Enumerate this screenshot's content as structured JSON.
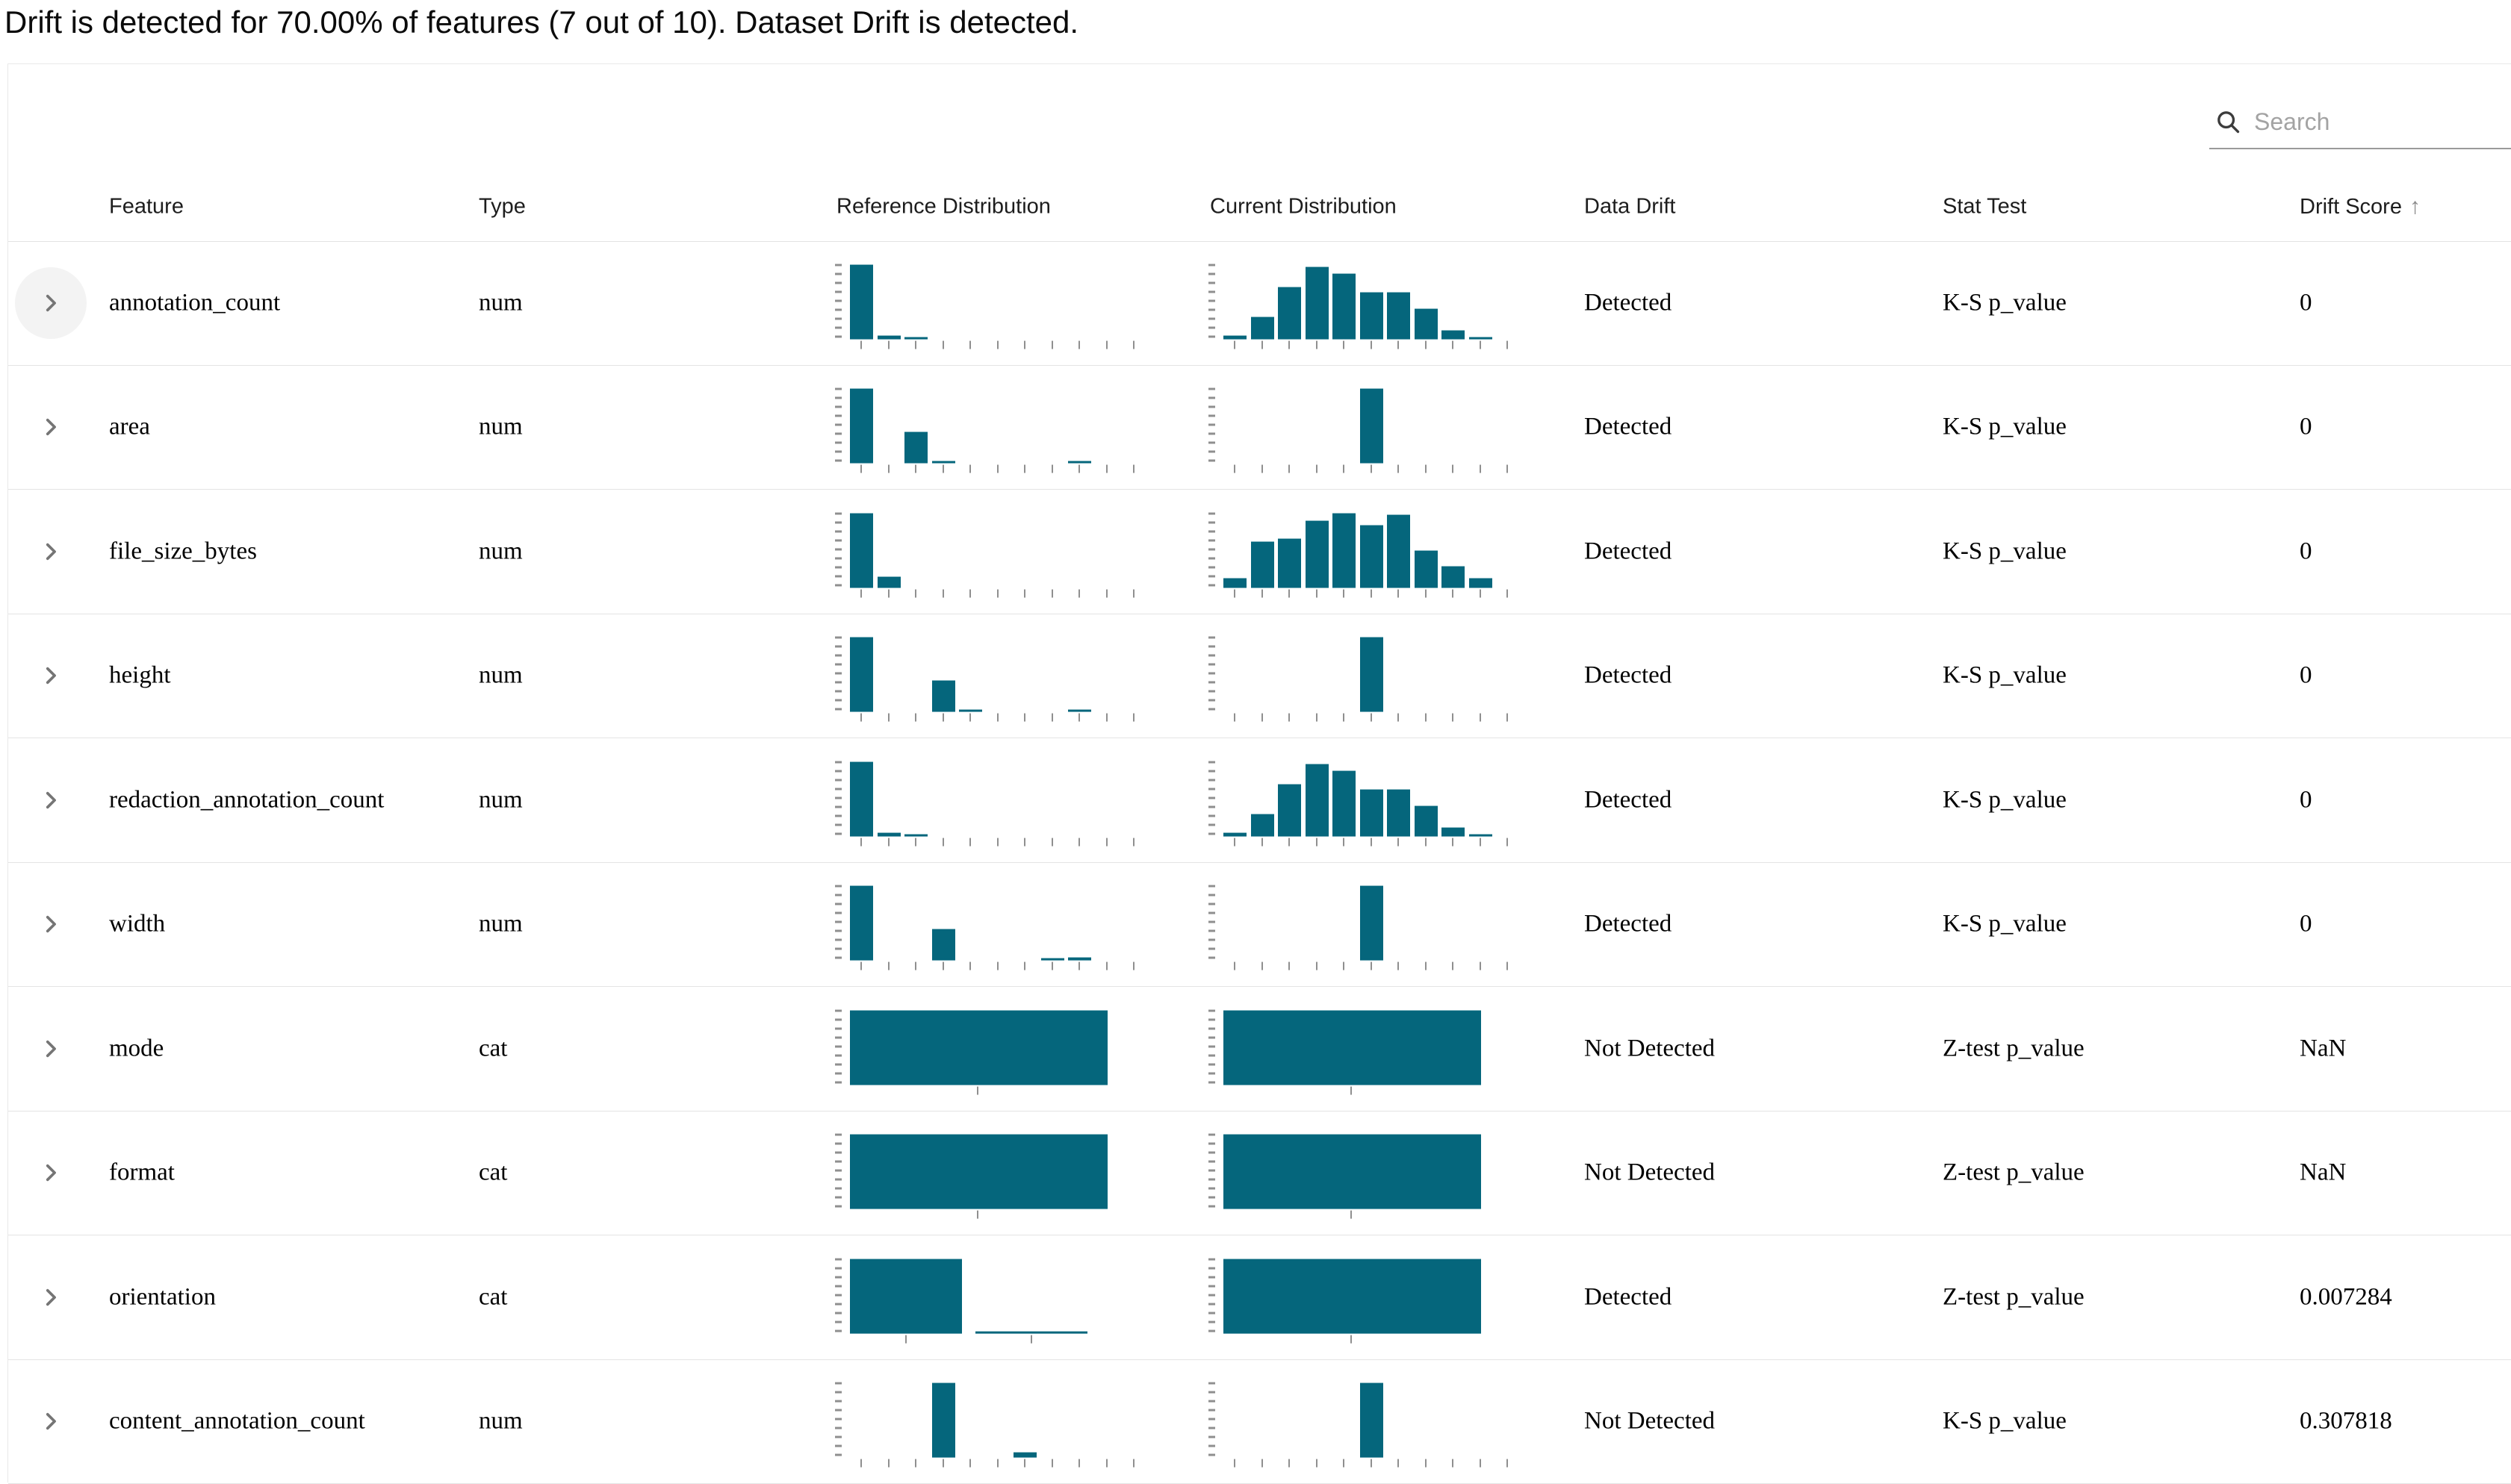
{
  "title": "Drift is detected for 70.00% of features (7 out of 10). Dataset Drift is detected.",
  "accent_color": "#05667c",
  "search": {
    "placeholder": "Search",
    "icon": "magnifier-icon"
  },
  "table": {
    "headers": [
      "Feature",
      "Type",
      "Reference Distribution",
      "Current Distribution",
      "Data Drift",
      "Stat Test",
      "Drift Score"
    ],
    "sort": {
      "column": "Drift Score",
      "direction": "ascending",
      "indicator": "↑"
    }
  },
  "rows": [
    {
      "feature": "annotation_count",
      "type": "num",
      "highlighted": true,
      "ref_distribution": {
        "kind": "num",
        "values": [
          100,
          5,
          3,
          0,
          0,
          0,
          0,
          0,
          0,
          0
        ]
      },
      "cur_distribution": {
        "kind": "num",
        "values": [
          5,
          30,
          70,
          97,
          88,
          63,
          63,
          41,
          12,
          2
        ]
      },
      "data_drift": "Detected",
      "stat_test": "K-S p_value",
      "drift_score": "0"
    },
    {
      "feature": "area",
      "type": "num",
      "ref_distribution": {
        "kind": "num",
        "values": [
          100,
          0,
          42,
          2,
          0,
          0,
          0,
          0,
          3,
          0
        ]
      },
      "cur_distribution": {
        "kind": "num",
        "values": [
          0,
          0,
          0,
          0,
          0,
          100,
          0,
          0,
          0,
          0
        ]
      },
      "data_drift": "Detected",
      "stat_test": "K-S p_value",
      "drift_score": "0"
    },
    {
      "feature": "file_size_bytes",
      "type": "num",
      "ref_distribution": {
        "kind": "num",
        "values": [
          100,
          15,
          0,
          0,
          0,
          0,
          0,
          0,
          0,
          0
        ]
      },
      "cur_distribution": {
        "kind": "num",
        "values": [
          13,
          62,
          66,
          90,
          100,
          84,
          98,
          50,
          29,
          13
        ]
      },
      "data_drift": "Detected",
      "stat_test": "K-S p_value",
      "drift_score": "0"
    },
    {
      "feature": "height",
      "type": "num",
      "ref_distribution": {
        "kind": "num",
        "values": [
          100,
          0,
          0,
          42,
          2,
          0,
          0,
          0,
          3,
          0
        ]
      },
      "cur_distribution": {
        "kind": "num",
        "values": [
          0,
          0,
          0,
          0,
          0,
          100,
          0,
          0,
          0,
          0
        ]
      },
      "data_drift": "Detected",
      "stat_test": "K-S p_value",
      "drift_score": "0"
    },
    {
      "feature": "redaction_annotation_count",
      "type": "num",
      "ref_distribution": {
        "kind": "num",
        "values": [
          100,
          5,
          3,
          0,
          0,
          0,
          0,
          0,
          0,
          0
        ]
      },
      "cur_distribution": {
        "kind": "num",
        "values": [
          5,
          30,
          70,
          97,
          88,
          63,
          63,
          41,
          12,
          2
        ]
      },
      "data_drift": "Detected",
      "stat_test": "K-S p_value",
      "drift_score": "0"
    },
    {
      "feature": "width",
      "type": "num",
      "ref_distribution": {
        "kind": "num",
        "values": [
          100,
          0,
          0,
          42,
          0,
          0,
          0,
          2,
          4,
          0
        ]
      },
      "cur_distribution": {
        "kind": "num",
        "values": [
          0,
          0,
          0,
          0,
          0,
          100,
          0,
          0,
          0,
          0
        ]
      },
      "data_drift": "Detected",
      "stat_test": "K-S p_value",
      "drift_score": "0"
    },
    {
      "feature": "mode",
      "type": "cat",
      "ref_distribution": {
        "kind": "cat",
        "values": [
          100
        ]
      },
      "cur_distribution": {
        "kind": "cat",
        "values": [
          100
        ]
      },
      "data_drift": "Not Detected",
      "stat_test": "Z-test p_value",
      "drift_score": "NaN"
    },
    {
      "feature": "format",
      "type": "cat",
      "ref_distribution": {
        "kind": "cat",
        "values": [
          100
        ]
      },
      "cur_distribution": {
        "kind": "cat",
        "values": [
          100
        ]
      },
      "data_drift": "Not Detected",
      "stat_test": "Z-test p_value",
      "drift_score": "NaN"
    },
    {
      "feature": "orientation",
      "type": "cat",
      "ref_distribution": {
        "kind": "cat",
        "values": [
          100,
          2
        ]
      },
      "cur_distribution": {
        "kind": "cat",
        "values": [
          100
        ]
      },
      "data_drift": "Detected",
      "stat_test": "Z-test p_value",
      "drift_score": "0.007284"
    },
    {
      "feature": "content_annotation_count",
      "type": "num",
      "ref_distribution": {
        "kind": "num",
        "values": [
          0,
          0,
          0,
          100,
          0,
          0,
          7,
          0,
          0,
          0
        ]
      },
      "cur_distribution": {
        "kind": "num",
        "values": [
          0,
          0,
          0,
          0,
          0,
          100,
          0,
          0,
          0,
          0
        ]
      },
      "data_drift": "Not Detected",
      "stat_test": "K-S p_value",
      "drift_score": "0.307818"
    }
  ]
}
